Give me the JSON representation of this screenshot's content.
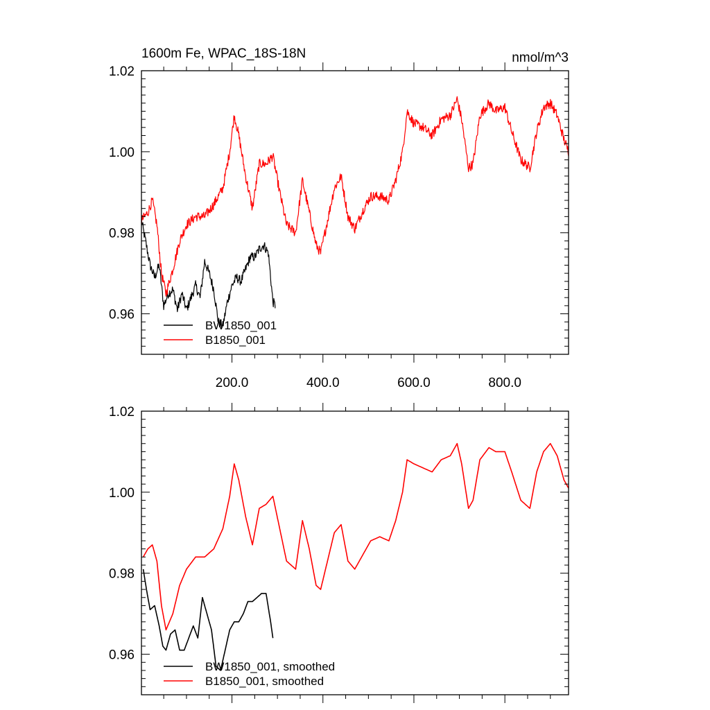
{
  "panels": [
    {
      "title_left": "1600m Fe, WPAC_18S-18N",
      "title_right": "nmol/m^3",
      "legend": [
        "BW1850_001",
        "B1850_001"
      ],
      "show_x_labels": true
    },
    {
      "title_left": "",
      "title_right": "",
      "legend": [
        "BW1850_001, smoothed",
        "B1850_001, smoothed"
      ],
      "show_x_labels": false
    }
  ],
  "chart_data": [
    {
      "type": "line",
      "title": "1600m Fe, WPAC_18S-18N",
      "units": "nmol/m^3",
      "xlim": [
        1,
        940
      ],
      "ylim": [
        0.95,
        1.02
      ],
      "x_ticks": [
        200,
        400,
        600,
        800
      ],
      "x_tick_labels": [
        "200.0",
        "400.0",
        "600.0",
        "800.0"
      ],
      "y_ticks": [
        0.96,
        0.98,
        1.0,
        1.02
      ],
      "y_tick_labels": [
        "0.96",
        "0.98",
        "1.00",
        "1.02"
      ],
      "legend_position": "bottom-left",
      "series": [
        {
          "name": "BW1850_001",
          "color": "#000000",
          "noise": 0.0012,
          "x": [
            1,
            10,
            20,
            30,
            40,
            50,
            60,
            70,
            80,
            90,
            100,
            110,
            120,
            130,
            140,
            150,
            160,
            170,
            180,
            190,
            200,
            210,
            220,
            230,
            240,
            250,
            260,
            270,
            280,
            290,
            295
          ],
          "y": [
            0.983,
            0.978,
            0.972,
            0.969,
            0.972,
            0.962,
            0.965,
            0.966,
            0.961,
            0.965,
            0.961,
            0.964,
            0.967,
            0.964,
            0.973,
            0.97,
            0.966,
            0.958,
            0.957,
            0.963,
            0.967,
            0.969,
            0.968,
            0.971,
            0.974,
            0.974,
            0.976,
            0.977,
            0.975,
            0.963,
            0.962
          ]
        },
        {
          "name": "B1850_001",
          "color": "#ff0000",
          "noise": 0.0012,
          "x": [
            1,
            15,
            25,
            35,
            45,
            55,
            70,
            85,
            100,
            120,
            140,
            160,
            180,
            195,
            205,
            215,
            230,
            245,
            260,
            275,
            290,
            305,
            320,
            340,
            355,
            370,
            385,
            395,
            410,
            425,
            440,
            455,
            470,
            490,
            505,
            525,
            545,
            560,
            575,
            585,
            600,
            620,
            640,
            660,
            680,
            695,
            705,
            720,
            730,
            745,
            765,
            780,
            800,
            815,
            835,
            855,
            870,
            885,
            900,
            915,
            930,
            940
          ],
          "y": [
            0.983,
            0.985,
            0.988,
            0.982,
            0.97,
            0.965,
            0.971,
            0.978,
            0.982,
            0.984,
            0.984,
            0.987,
            0.991,
            1.0,
            1.009,
            1.004,
            0.994,
            0.986,
            0.997,
            0.997,
            0.999,
            0.99,
            0.982,
            0.98,
            0.993,
            0.985,
            0.977,
            0.975,
            0.983,
            0.991,
            0.994,
            0.984,
            0.981,
            0.986,
            0.989,
            0.989,
            0.988,
            0.993,
            1.0,
            1.01,
            1.007,
            1.006,
            1.004,
            1.008,
            1.009,
            1.013,
            1.008,
            0.996,
            0.997,
            1.009,
            1.012,
            1.01,
            1.011,
            1.005,
            0.998,
            0.996,
            1.005,
            1.011,
            1.012,
            1.009,
            1.003,
            1.0
          ]
        }
      ]
    },
    {
      "type": "line",
      "title": "",
      "xlim": [
        1,
        940
      ],
      "ylim": [
        0.95,
        1.02
      ],
      "x_ticks": [
        200,
        400,
        600,
        800
      ],
      "y_ticks": [
        0.96,
        0.98,
        1.0,
        1.02
      ],
      "y_tick_labels": [
        "0.96",
        "0.98",
        "1.00",
        "1.02"
      ],
      "legend_position": "bottom-left",
      "series": [
        {
          "name": "BW1850_001, smoothed",
          "color": "#000000",
          "noise": 0,
          "x": [
            5,
            12,
            20,
            30,
            40,
            48,
            55,
            65,
            75,
            85,
            95,
            105,
            115,
            125,
            135,
            145,
            155,
            165,
            175,
            185,
            195,
            205,
            215,
            225,
            235,
            245,
            255,
            265,
            275,
            285,
            290
          ],
          "y": [
            0.981,
            0.976,
            0.971,
            0.972,
            0.967,
            0.962,
            0.961,
            0.965,
            0.966,
            0.961,
            0.961,
            0.964,
            0.967,
            0.964,
            0.974,
            0.97,
            0.966,
            0.957,
            0.956,
            0.961,
            0.966,
            0.968,
            0.968,
            0.97,
            0.973,
            0.973,
            0.974,
            0.975,
            0.975,
            0.968,
            0.964
          ]
        },
        {
          "name": "B1850_001, smoothed",
          "color": "#ff0000",
          "noise": 0,
          "x": [
            5,
            15,
            25,
            35,
            45,
            55,
            70,
            85,
            100,
            120,
            140,
            160,
            180,
            195,
            205,
            215,
            230,
            245,
            260,
            275,
            290,
            305,
            320,
            340,
            355,
            370,
            385,
            395,
            410,
            425,
            440,
            455,
            470,
            490,
            505,
            525,
            545,
            560,
            575,
            585,
            600,
            620,
            640,
            660,
            680,
            695,
            705,
            720,
            730,
            745,
            765,
            780,
            800,
            815,
            835,
            855,
            870,
            885,
            900,
            915,
            930,
            940
          ],
          "y": [
            0.984,
            0.986,
            0.987,
            0.983,
            0.972,
            0.966,
            0.97,
            0.977,
            0.981,
            0.984,
            0.984,
            0.986,
            0.991,
            0.999,
            1.007,
            1.003,
            0.994,
            0.987,
            0.996,
            0.997,
            0.999,
            0.991,
            0.983,
            0.981,
            0.993,
            0.986,
            0.977,
            0.976,
            0.983,
            0.99,
            0.992,
            0.983,
            0.981,
            0.985,
            0.988,
            0.989,
            0.988,
            0.993,
            1.0,
            1.008,
            1.007,
            1.006,
            1.005,
            1.008,
            1.009,
            1.012,
            1.007,
            0.996,
            0.998,
            1.008,
            1.011,
            1.01,
            1.01,
            1.005,
            0.998,
            0.996,
            1.005,
            1.01,
            1.012,
            1.009,
            1.003,
            1.001
          ]
        }
      ]
    }
  ]
}
